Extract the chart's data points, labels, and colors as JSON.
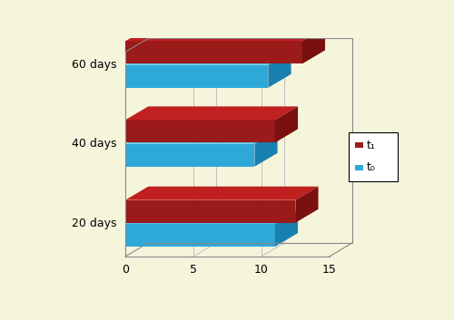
{
  "categories": [
    "20 days",
    "40 days",
    "60 days"
  ],
  "t1_values": [
    12.5,
    11.0,
    13.0
  ],
  "t0_values": [
    11.0,
    9.5,
    10.5
  ],
  "t1_color_front": "#9b1a1a",
  "t1_color_top": "#c02020",
  "t1_color_side": "#7a1010",
  "t0_color_front": "#2ea8d8",
  "t0_color_top": "#55c0e8",
  "t0_color_side": "#1880b0",
  "background_color": "#f5f5dc",
  "legend_t1": "t₁",
  "legend_t0": "t₀",
  "val_max": 15,
  "xticks": [
    0,
    5,
    10,
    15
  ]
}
